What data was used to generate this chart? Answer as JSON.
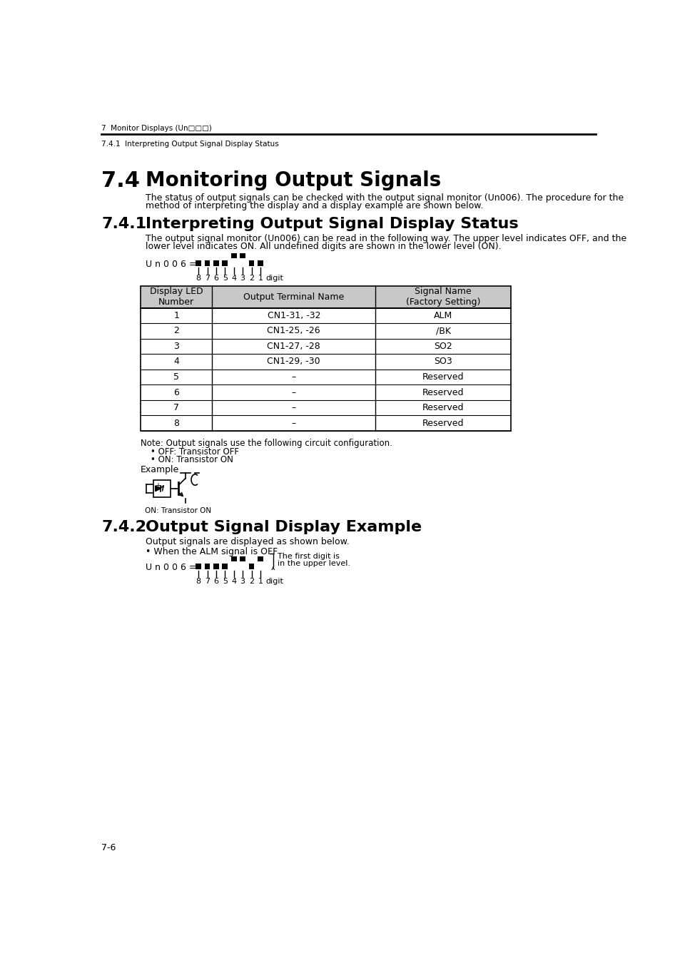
{
  "bg_color": "#ffffff",
  "header_line1": "7  Monitor Displays (Un□□□)",
  "header_line2": "7.4.1  Interpreting Output Signal Display Status",
  "section_74_num": "7.4",
  "section_74_title": "Monitoring Output Signals",
  "section_74_body1": "The status of output signals can be checked with the output signal monitor (Un006). The procedure for the",
  "section_74_body2": "method of interpreting the display and a display example are shown below.",
  "section_741_num": "7.4.1",
  "section_741_title": "Interpreting Output Signal Display Status",
  "section_741_body1": "The output signal monitor (Un006) can be read in the following way. The upper level indicates OFF, and the",
  "section_741_body2": "lower level indicates ON. All undefined digits are shown in the lower level (ON).",
  "table_header": [
    "Display LED\nNumber",
    "Output Terminal Name",
    "Signal Name\n(Factory Setting)"
  ],
  "table_rows": [
    [
      "1",
      "CN1-31, -32",
      "ALM"
    ],
    [
      "2",
      "CN1-25, -26",
      "/BK"
    ],
    [
      "3",
      "CN1-27, -28",
      "SO2"
    ],
    [
      "4",
      "CN1-29, -30",
      "SO3"
    ],
    [
      "5",
      "–",
      "Reserved"
    ],
    [
      "6",
      "–",
      "Reserved"
    ],
    [
      "7",
      "–",
      "Reserved"
    ],
    [
      "8",
      "–",
      "Reserved"
    ]
  ],
  "note_line1": "Note: Output signals use the following circuit configuration.",
  "note_bullet1": "• OFF: Transistor OFF",
  "note_bullet2": "• ON: Transistor ON",
  "example_label": "Example",
  "transistor_label": "ON: Transistor ON",
  "section_742_num": "7.4.2",
  "section_742_title": "Output Signal Display Example",
  "section_742_body": "Output signals are displayed as shown below.",
  "alm_off_label": "• When the ALM signal is OFF",
  "annotation_text1": "The first digit is",
  "annotation_text2": "in the upper level.",
  "page_number": "7-6",
  "header_bg": "#c8c8c8",
  "table_border": "#000000",
  "text_color": "#000000"
}
